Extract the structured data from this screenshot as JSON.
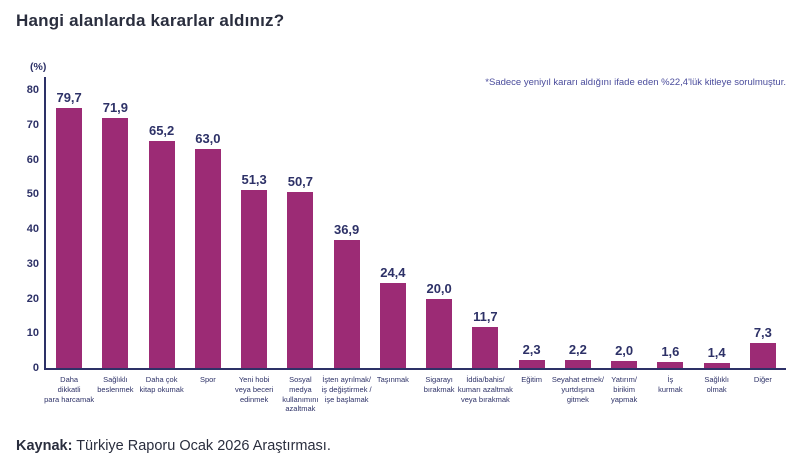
{
  "title": "Hangi alanlarda kararlar aldınız?",
  "note": "*Sadece yeniyıl kararı aldığını ifade eden %22,4'lük kitleye sorulmuştur.",
  "source": {
    "label": "Kaynak:",
    "text": " Türkiye Raporu Ocak 2026 Araştırması."
  },
  "chart_data": {
    "type": "bar",
    "title": "Hangi alanlarda kararlar aldınız?",
    "unit_label": "(%)",
    "categories": [
      "Daha\ndikkatli\npara harcamak",
      "Sağlıklı\nbeslenmek",
      "Daha çok\nkitap okumak",
      "Spor",
      "Yeni hobi\nveya beceri\nedinmek",
      "Sosyal\nmedya\nkullanımını\nazaltmak",
      "İşten ayrılmak/\niş değiştirmek /\nişe başlamak",
      "Taşınmak",
      "Sigarayı\nbırakmak",
      "İddia/bahis/\nkumarı azaltmak\nveya bırakmak",
      "Eğitim",
      "Seyahat etmek/\nyurtdışına\ngitmek",
      "Yatırım/\nbirikim\nyapmak",
      "İş\nkurmak",
      "Sağlıklı\nolmak",
      "Diğer"
    ],
    "values": [
      79.7,
      71.9,
      65.2,
      63.0,
      51.3,
      50.7,
      36.9,
      24.4,
      20.0,
      11.7,
      2.3,
      2.2,
      2.0,
      1.6,
      1.4,
      7.3
    ],
    "value_labels": [
      "79,7",
      "71,9",
      "65,2",
      "63,0",
      "51,3",
      "50,7",
      "36,9",
      "24,4",
      "20,0",
      "11,7",
      "2,3",
      "2,2",
      "2,0",
      "1,6",
      "1,4",
      "7,3"
    ],
    "ylim": [
      0,
      80
    ],
    "yticks": [
      0,
      10,
      20,
      30,
      40,
      50,
      60,
      70,
      80
    ],
    "grid": false,
    "legend": "none",
    "bar_color": "#9C2B75",
    "axis_color": "#2D3167",
    "value_label_color": "#2D3167",
    "note_color": "#4A4C9C"
  }
}
